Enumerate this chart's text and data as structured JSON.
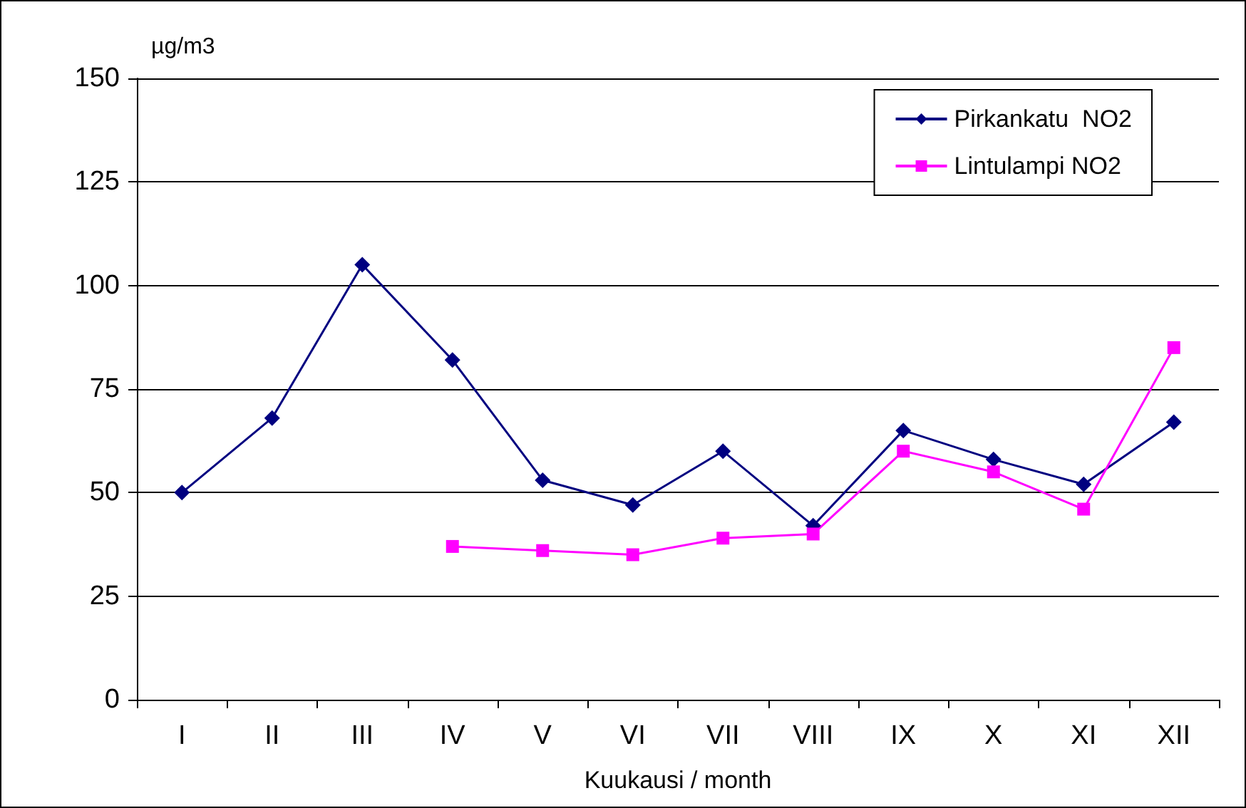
{
  "chart_data": {
    "type": "line",
    "ylabel": "µg/m3",
    "xlabel": "Kuukausi / month",
    "categories": [
      "I",
      "II",
      "III",
      "IV",
      "V",
      "VI",
      "VII",
      "VIII",
      "IX",
      "X",
      "XI",
      "XII"
    ],
    "series": [
      {
        "name": "Pirkankatu  NO2",
        "color": "#000080",
        "marker": "diamond",
        "values": [
          50,
          68,
          105,
          82,
          53,
          47,
          60,
          42,
          65,
          58,
          52,
          67
        ]
      },
      {
        "name": "Lintulampi NO2",
        "color": "#ff00ff",
        "marker": "square",
        "values": [
          null,
          null,
          null,
          37,
          36,
          35,
          39,
          40,
          60,
          55,
          46,
          85
        ]
      }
    ],
    "ylim": [
      0,
      150
    ],
    "yticks": [
      0,
      25,
      50,
      75,
      100,
      125,
      150
    ],
    "grid": "y",
    "legend": "top right",
    "line_style": "solid"
  }
}
